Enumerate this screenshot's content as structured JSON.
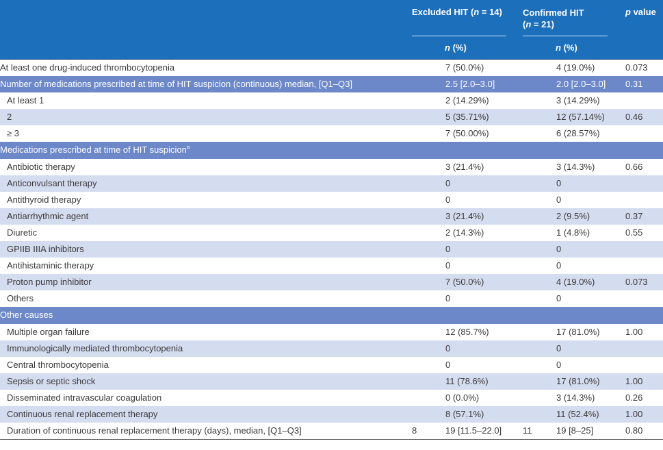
{
  "header": {
    "excluded_prefix": "Excluded HIT (",
    "excluded_n": "n",
    "excluded_suffix": " = 14)",
    "confirmed_prefix": "Confirmed HIT",
    "confirmed_line2_open": "(",
    "confirmed_n": "n",
    "confirmed_suffix": " = 21)",
    "p_italic": "p",
    "p_suffix": " value",
    "sub_n": "n",
    "sub_pct": " (%)"
  },
  "rows": [
    {
      "type": "plain",
      "indent": false,
      "label": "At least one drug-induced thrombocytopenia",
      "n_exc": "",
      "exc": "7 (50.0%)",
      "n_con": "",
      "con": "4 (19.0%)",
      "p": "0.073"
    },
    {
      "type": "sec",
      "indent": false,
      "label": "Number of medications prescribed at time of HIT suspicion (continuous) median, [Q1–Q3]",
      "n_exc": "",
      "exc": "2.5 [2.0–3.0]",
      "n_con": "",
      "con": "2.0 [2.0–3.0]",
      "p": "0.31"
    },
    {
      "type": "plain",
      "indent": true,
      "label": "At least 1",
      "n_exc": "",
      "exc": "2 (14.29%)",
      "n_con": "",
      "con": "3 (14.29%)",
      "p": ""
    },
    {
      "type": "alt",
      "indent": true,
      "label": "2",
      "n_exc": "",
      "exc": "5 (35.71%)",
      "n_con": "",
      "con": "12 (57.14%)",
      "p": "0.46"
    },
    {
      "type": "plain",
      "indent": true,
      "label": "≥ 3",
      "n_exc": "",
      "exc": "7 (50.00%)",
      "n_con": "",
      "con": "6 (28.57%)",
      "p": ""
    },
    {
      "type": "sec",
      "indent": false,
      "label": "Medications prescribed at time of HIT suspicion",
      "sup": "a",
      "n_exc": "",
      "exc": "",
      "n_con": "",
      "con": "",
      "p": ""
    },
    {
      "type": "plain",
      "indent": true,
      "label": "Antibiotic therapy",
      "n_exc": "",
      "exc": "3 (21.4%)",
      "n_con": "",
      "con": "3 (14.3%)",
      "p": "0.66"
    },
    {
      "type": "alt",
      "indent": true,
      "label": "Anticonvulsant therapy",
      "n_exc": "",
      "exc": "0",
      "n_con": "",
      "con": "0",
      "p": ""
    },
    {
      "type": "plain",
      "indent": true,
      "label": "Antithyroid therapy",
      "n_exc": "",
      "exc": "0",
      "n_con": "",
      "con": "0",
      "p": ""
    },
    {
      "type": "alt",
      "indent": true,
      "label": "Antiarrhythmic agent",
      "n_exc": "",
      "exc": "3 (21.4%)",
      "n_con": "",
      "con": "2 (9.5%)",
      "p": "0.37"
    },
    {
      "type": "plain",
      "indent": true,
      "label": "Diuretic",
      "n_exc": "",
      "exc": "2 (14.3%)",
      "n_con": "",
      "con": "1 (4.8%)",
      "p": "0.55"
    },
    {
      "type": "alt",
      "indent": true,
      "label": "GPIIB IIIA inhibitors",
      "n_exc": "",
      "exc": "0",
      "n_con": "",
      "con": "0",
      "p": ""
    },
    {
      "type": "plain",
      "indent": true,
      "label": "Antihistaminic therapy",
      "n_exc": "",
      "exc": "0",
      "n_con": "",
      "con": "0",
      "p": ""
    },
    {
      "type": "alt",
      "indent": true,
      "label": "Proton pump inhibitor",
      "n_exc": "",
      "exc": "7 (50.0%)",
      "n_con": "",
      "con": "4 (19.0%)",
      "p": "0.073"
    },
    {
      "type": "plain",
      "indent": true,
      "label": "Others",
      "n_exc": "",
      "exc": "0",
      "n_con": "",
      "con": "0",
      "p": ""
    },
    {
      "type": "sec",
      "indent": false,
      "label": "Other causes",
      "n_exc": "",
      "exc": "",
      "n_con": "",
      "con": "",
      "p": ""
    },
    {
      "type": "plain",
      "indent": true,
      "label": "Multiple organ failure",
      "n_exc": "",
      "exc": "12 (85.7%)",
      "n_con": "",
      "con": "17 (81.0%)",
      "p": "1.00"
    },
    {
      "type": "alt",
      "indent": true,
      "label": "Immunologically mediated thrombocytopenia",
      "n_exc": "",
      "exc": "0",
      "n_con": "",
      "con": "0",
      "p": ""
    },
    {
      "type": "plain",
      "indent": true,
      "label": "Central thrombocytopenia",
      "n_exc": "",
      "exc": "0",
      "n_con": "",
      "con": "0",
      "p": ""
    },
    {
      "type": "alt",
      "indent": true,
      "label": "Sepsis or septic shock",
      "n_exc": "",
      "exc": "11 (78.6%)",
      "n_con": "",
      "con": "17 (81.0%)",
      "p": "1.00"
    },
    {
      "type": "plain",
      "indent": true,
      "label": "Disseminated intravascular coagulation",
      "n_exc": "",
      "exc": "0 (0.0%)",
      "n_con": "",
      "con": "3 (14.3%)",
      "p": "0.26"
    },
    {
      "type": "alt",
      "indent": true,
      "label": "Continuous renal replacement therapy",
      "n_exc": "",
      "exc": "8 (57.1%)",
      "n_con": "",
      "con": "11 (52.4%)",
      "p": "1.00"
    },
    {
      "type": "plain",
      "indent": true,
      "label": "Duration of continuous renal replacement therapy (days), median, [Q1–Q3]",
      "n_exc": "8",
      "exc": "19 [11.5–22.0]",
      "n_con": "11",
      "con": "19 [8–25]",
      "p": "0.80"
    }
  ]
}
